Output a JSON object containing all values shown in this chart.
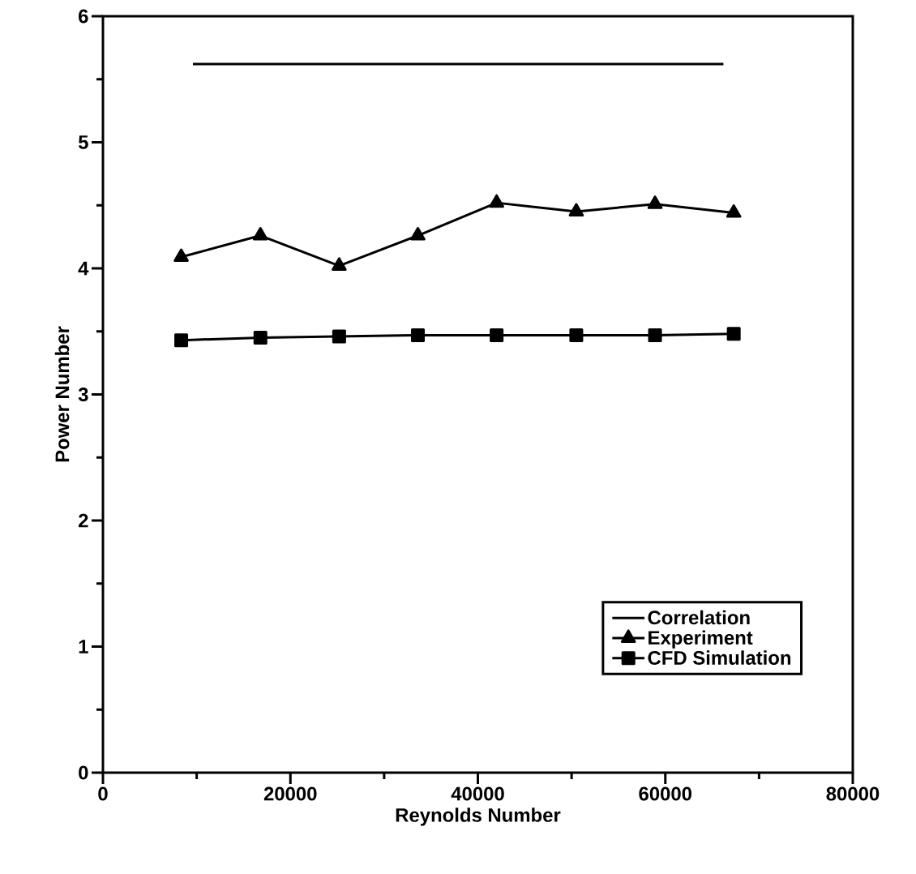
{
  "chart_data": {
    "type": "line",
    "xlabel": "Reynolds Number",
    "ylabel": "Power Number",
    "xlim": [
      0,
      80000
    ],
    "xticks": [
      0,
      20000,
      40000,
      60000,
      80000
    ],
    "ylim": [
      0,
      6
    ],
    "yticks": [
      0,
      1,
      2,
      3,
      4,
      5,
      6
    ],
    "legend": "bottom right",
    "grid": false,
    "line_style": "solid",
    "series": [
      {
        "name": "Correlation",
        "color": "#000000",
        "marker": "none",
        "x": [
          9600,
          66200
        ],
        "values": [
          5.62,
          5.62
        ]
      },
      {
        "name": "Experiment",
        "color": "#000000",
        "marker": "triangle",
        "x": [
          8350,
          16800,
          25200,
          33600,
          42000,
          50500,
          58900,
          67300
        ],
        "values": [
          4.09,
          4.26,
          4.02,
          4.26,
          4.52,
          4.45,
          4.51,
          4.44
        ]
      },
      {
        "name": "CFD Simulation",
        "color": "#000000",
        "marker": "square",
        "x": [
          8350,
          16800,
          25200,
          33600,
          42000,
          50500,
          58900,
          67300
        ],
        "values": [
          3.43,
          3.45,
          3.46,
          3.47,
          3.47,
          3.47,
          3.47,
          3.48
        ]
      }
    ]
  }
}
